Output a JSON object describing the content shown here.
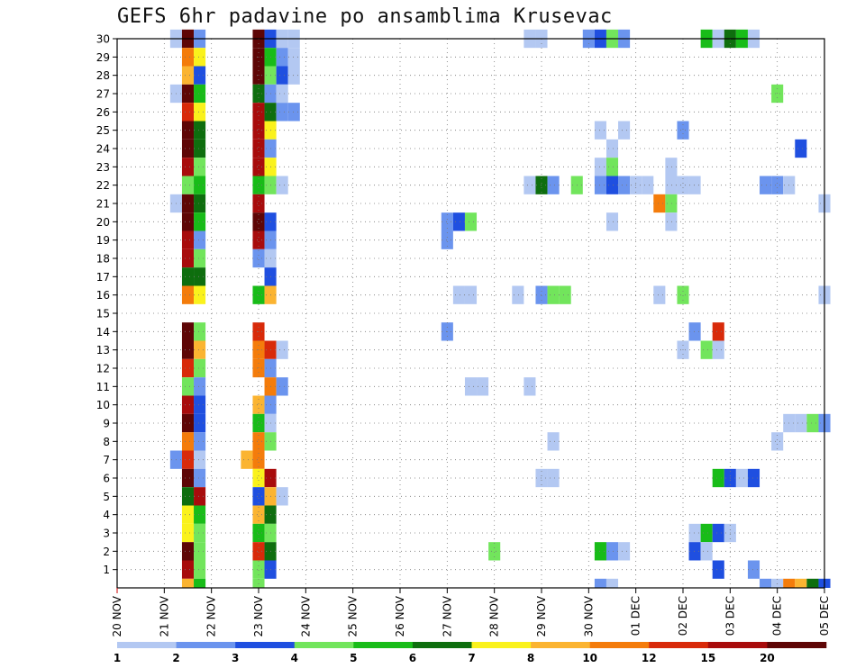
{
  "chart_data": {
    "type": "heatmap",
    "title": "GEFS 6hr padavine po ansamblima Krusevac",
    "xlabel": "",
    "ylabel": "",
    "x_ticks": [
      "20 NOV",
      "21 NOV",
      "22 NOV",
      "23 NOV",
      "24 NOV",
      "25 NOV",
      "26 NOV",
      "27 NOV",
      "28 NOV",
      "29 NOV",
      "30 NOV",
      "01 DEC",
      "02 DEC",
      "03 DEC",
      "04 DEC",
      "05 DEC"
    ],
    "y_ticks": [
      "1",
      "2",
      "3",
      "4",
      "5",
      "6",
      "7",
      "8",
      "9",
      "10",
      "11",
      "12",
      "13",
      "14",
      "15",
      "16",
      "17",
      "18",
      "19",
      "20",
      "21",
      "22",
      "23",
      "24",
      "25",
      "26",
      "27",
      "28",
      "29",
      "30"
    ],
    "x_range": [
      "20 NOV 00",
      "05 DEC 00"
    ],
    "y_range": [
      0,
      30
    ],
    "grid": true,
    "colorbar": {
      "labels": [
        "1",
        "2",
        "3",
        "4",
        "5",
        "6",
        "7",
        "8",
        "10",
        "12",
        "15",
        "20"
      ],
      "colors": [
        "#b3c8f2",
        "#6b94ee",
        "#1f4fe0",
        "#72e55c",
        "#18bc18",
        "#0e6e0e",
        "#faf21c",
        "#fbb431",
        "#f47c0b",
        "#d82a0a",
        "#a80c0c",
        "#5e0606"
      ]
    },
    "cells": [
      [
        30,
        1.25,
        1
      ],
      [
        30,
        1.5,
        12
      ],
      [
        30,
        1.75,
        2
      ],
      [
        30,
        3.0,
        12
      ],
      [
        30,
        3.25,
        3
      ],
      [
        30,
        3.5,
        1
      ],
      [
        30,
        3.75,
        1
      ],
      [
        30,
        8.75,
        1
      ],
      [
        30,
        9.0,
        1
      ],
      [
        30,
        10.0,
        2
      ],
      [
        30,
        10.25,
        3
      ],
      [
        30,
        10.5,
        4
      ],
      [
        30,
        10.75,
        2
      ],
      [
        30,
        12.5,
        5
      ],
      [
        30,
        12.75,
        1
      ],
      [
        30,
        13.0,
        6
      ],
      [
        30,
        13.25,
        5
      ],
      [
        30,
        13.5,
        1
      ],
      [
        29,
        1.5,
        9
      ],
      [
        29,
        1.75,
        7
      ],
      [
        29,
        3.0,
        12
      ],
      [
        29,
        3.25,
        5
      ],
      [
        29,
        3.5,
        2
      ],
      [
        29,
        3.75,
        1
      ],
      [
        28,
        1.5,
        8
      ],
      [
        28,
        1.75,
        3
      ],
      [
        28,
        3.0,
        12
      ],
      [
        28,
        3.25,
        4
      ],
      [
        28,
        3.5,
        3
      ],
      [
        28,
        3.75,
        1
      ],
      [
        27,
        1.25,
        1
      ],
      [
        27,
        1.5,
        12
      ],
      [
        27,
        1.75,
        5
      ],
      [
        27,
        3.0,
        6
      ],
      [
        27,
        3.25,
        2
      ],
      [
        27,
        3.5,
        1
      ],
      [
        27,
        14.0,
        4
      ],
      [
        26,
        1.5,
        10
      ],
      [
        26,
        1.75,
        7
      ],
      [
        26,
        3.0,
        11
      ],
      [
        26,
        3.25,
        6
      ],
      [
        26,
        3.5,
        2
      ],
      [
        26,
        3.75,
        2
      ],
      [
        25,
        1.5,
        12
      ],
      [
        25,
        1.75,
        6
      ],
      [
        25,
        3.0,
        11
      ],
      [
        25,
        3.25,
        7
      ],
      [
        25,
        10.25,
        1
      ],
      [
        25,
        10.75,
        1
      ],
      [
        25,
        12.0,
        2
      ],
      [
        24,
        1.5,
        12
      ],
      [
        24,
        1.75,
        6
      ],
      [
        24,
        3.0,
        11
      ],
      [
        24,
        3.25,
        2
      ],
      [
        24,
        10.5,
        1
      ],
      [
        24,
        14.5,
        3
      ],
      [
        23,
        1.5,
        11
      ],
      [
        23,
        1.75,
        4
      ],
      [
        23,
        3.0,
        11
      ],
      [
        23,
        3.25,
        7
      ],
      [
        23,
        10.25,
        1
      ],
      [
        23,
        10.5,
        4
      ],
      [
        23,
        11.75,
        1
      ],
      [
        22,
        1.5,
        4
      ],
      [
        22,
        1.75,
        5
      ],
      [
        22,
        3.0,
        5
      ],
      [
        22,
        3.25,
        4
      ],
      [
        22,
        3.5,
        1
      ],
      [
        22,
        8.75,
        1
      ],
      [
        22,
        9.0,
        6
      ],
      [
        22,
        9.25,
        2
      ],
      [
        22,
        9.75,
        4
      ],
      [
        22,
        10.25,
        2
      ],
      [
        22,
        10.5,
        3
      ],
      [
        22,
        10.75,
        2
      ],
      [
        22,
        11.0,
        1
      ],
      [
        22,
        11.25,
        1
      ],
      [
        22,
        11.75,
        1
      ],
      [
        22,
        12.0,
        1
      ],
      [
        22,
        12.25,
        1
      ],
      [
        22,
        13.75,
        2
      ],
      [
        22,
        14.0,
        2
      ],
      [
        22,
        14.25,
        1
      ],
      [
        21,
        1.25,
        1
      ],
      [
        21,
        1.5,
        12
      ],
      [
        21,
        1.75,
        6
      ],
      [
        21,
        3.0,
        11
      ],
      [
        21,
        11.5,
        9
      ],
      [
        21,
        11.75,
        4
      ],
      [
        21,
        15.0,
        1
      ],
      [
        20,
        1.5,
        12
      ],
      [
        20,
        1.75,
        5
      ],
      [
        20,
        3.0,
        12
      ],
      [
        20,
        3.25,
        3
      ],
      [
        20,
        7.0,
        2
      ],
      [
        20,
        7.25,
        3
      ],
      [
        20,
        7.5,
        4
      ],
      [
        20,
        10.5,
        1
      ],
      [
        20,
        11.75,
        1
      ],
      [
        19,
        1.5,
        11
      ],
      [
        19,
        1.75,
        2
      ],
      [
        19,
        3.0,
        11
      ],
      [
        19,
        3.25,
        2
      ],
      [
        19,
        7.0,
        2
      ],
      [
        18,
        1.5,
        11
      ],
      [
        18,
        1.75,
        4
      ],
      [
        18,
        3.0,
        2
      ],
      [
        18,
        3.25,
        1
      ],
      [
        17,
        1.5,
        6
      ],
      [
        17,
        1.75,
        6
      ],
      [
        17,
        3.25,
        3
      ],
      [
        16,
        1.5,
        9
      ],
      [
        16,
        1.75,
        7
      ],
      [
        16,
        3.0,
        5
      ],
      [
        16,
        3.25,
        8
      ],
      [
        16,
        7.25,
        1
      ],
      [
        16,
        7.5,
        1
      ],
      [
        16,
        8.5,
        1
      ],
      [
        16,
        9.0,
        2
      ],
      [
        16,
        9.25,
        4
      ],
      [
        16,
        9.5,
        4
      ],
      [
        16,
        11.5,
        1
      ],
      [
        16,
        12.0,
        4
      ],
      [
        16,
        15.0,
        1
      ],
      [
        14,
        1.5,
        12
      ],
      [
        14,
        1.75,
        4
      ],
      [
        14,
        3.0,
        10
      ],
      [
        14,
        7.0,
        2
      ],
      [
        14,
        12.25,
        2
      ],
      [
        14,
        12.75,
        10
      ],
      [
        13,
        1.5,
        12
      ],
      [
        13,
        1.75,
        8
      ],
      [
        13,
        3.0,
        9
      ],
      [
        13,
        3.25,
        10
      ],
      [
        13,
        3.5,
        1
      ],
      [
        13,
        12.0,
        1
      ],
      [
        13,
        12.5,
        4
      ],
      [
        13,
        12.75,
        1
      ],
      [
        12,
        1.5,
        10
      ],
      [
        12,
        1.75,
        4
      ],
      [
        12,
        3.0,
        9
      ],
      [
        12,
        3.25,
        2
      ],
      [
        11,
        1.5,
        4
      ],
      [
        11,
        1.75,
        2
      ],
      [
        11,
        3.25,
        9
      ],
      [
        11,
        3.5,
        2
      ],
      [
        11,
        7.5,
        1
      ],
      [
        11,
        7.75,
        1
      ],
      [
        11,
        8.75,
        1
      ],
      [
        10,
        1.5,
        11
      ],
      [
        10,
        1.75,
        3
      ],
      [
        10,
        3.0,
        8
      ],
      [
        10,
        3.25,
        2
      ],
      [
        9,
        1.5,
        12
      ],
      [
        9,
        1.75,
        3
      ],
      [
        9,
        3.0,
        5
      ],
      [
        9,
        3.25,
        1
      ],
      [
        9,
        14.25,
        1
      ],
      [
        9,
        14.5,
        1
      ],
      [
        9,
        14.75,
        4
      ],
      [
        9,
        15.0,
        2
      ],
      [
        8,
        1.5,
        9
      ],
      [
        8,
        1.75,
        2
      ],
      [
        8,
        3.0,
        9
      ],
      [
        8,
        3.25,
        4
      ],
      [
        8,
        9.25,
        1
      ],
      [
        8,
        14.0,
        1
      ],
      [
        7,
        1.25,
        2
      ],
      [
        7,
        1.5,
        10
      ],
      [
        7,
        1.75,
        1
      ],
      [
        7,
        2.75,
        8
      ],
      [
        7,
        3.0,
        9
      ],
      [
        6,
        1.5,
        12
      ],
      [
        6,
        1.75,
        2
      ],
      [
        6,
        3.0,
        7
      ],
      [
        6,
        3.25,
        11
      ],
      [
        6,
        9.0,
        1
      ],
      [
        6,
        9.25,
        1
      ],
      [
        6,
        12.75,
        5
      ],
      [
        6,
        13.0,
        3
      ],
      [
        6,
        13.25,
        1
      ],
      [
        6,
        13.5,
        3
      ],
      [
        5,
        1.5,
        6
      ],
      [
        5,
        1.75,
        11
      ],
      [
        5,
        3.0,
        3
      ],
      [
        5,
        3.25,
        8
      ],
      [
        5,
        3.5,
        1
      ],
      [
        4,
        1.5,
        7
      ],
      [
        4,
        1.75,
        5
      ],
      [
        4,
        3.0,
        8
      ],
      [
        4,
        3.25,
        6
      ],
      [
        3,
        1.5,
        7
      ],
      [
        3,
        1.75,
        4
      ],
      [
        3,
        3.0,
        5
      ],
      [
        3,
        3.25,
        4
      ],
      [
        3,
        12.25,
        1
      ],
      [
        3,
        12.5,
        5
      ],
      [
        3,
        12.75,
        3
      ],
      [
        3,
        13.0,
        1
      ],
      [
        2,
        1.5,
        12
      ],
      [
        2,
        1.75,
        4
      ],
      [
        2,
        3.0,
        10
      ],
      [
        2,
        3.25,
        6
      ],
      [
        2,
        8.0,
        4
      ],
      [
        2,
        10.25,
        5
      ],
      [
        2,
        10.5,
        2
      ],
      [
        2,
        10.75,
        1
      ],
      [
        2,
        12.25,
        3
      ],
      [
        2,
        12.5,
        1
      ],
      [
        1,
        1.5,
        11
      ],
      [
        1,
        1.75,
        4
      ],
      [
        1,
        3.0,
        4
      ],
      [
        1,
        3.25,
        3
      ],
      [
        1,
        12.75,
        3
      ],
      [
        1,
        13.5,
        2
      ],
      [
        0,
        1.5,
        8
      ],
      [
        0,
        1.75,
        5
      ],
      [
        0,
        3.0,
        4
      ],
      [
        0,
        10.25,
        2
      ],
      [
        0,
        10.5,
        1
      ],
      [
        0,
        13.75,
        2
      ],
      [
        0,
        14.0,
        1
      ],
      [
        0,
        14.25,
        9
      ],
      [
        0,
        14.5,
        8
      ],
      [
        0,
        14.75,
        6
      ],
      [
        0,
        15.0,
        3
      ]
    ]
  }
}
